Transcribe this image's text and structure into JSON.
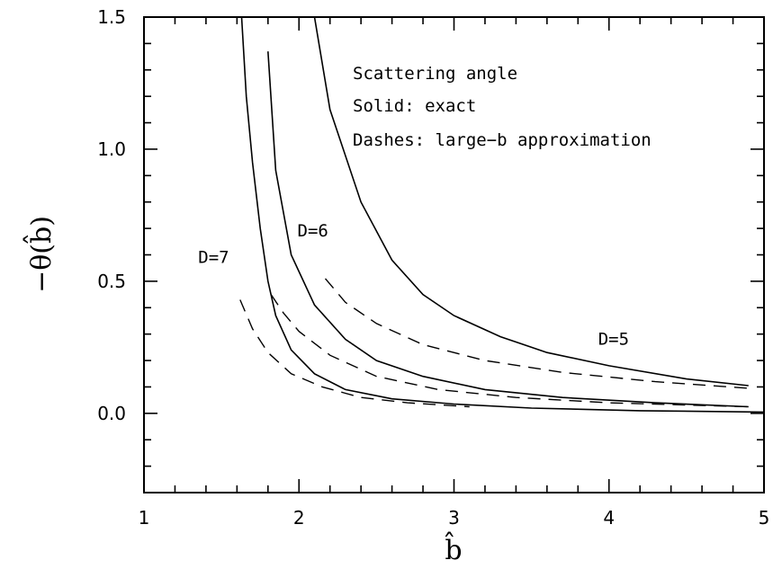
{
  "chart_data": {
    "type": "line",
    "xlabel": "b̂",
    "ylabel": "−θ(b̂)",
    "xlim": [
      1,
      5
    ],
    "ylim": [
      -0.3,
      1.5
    ],
    "x_ticks": [
      1,
      2,
      3,
      4,
      5
    ],
    "x_tick_labels": [
      "1",
      "2",
      "3",
      "4",
      "5"
    ],
    "y_ticks": [
      0.0,
      0.5,
      1.0,
      1.5
    ],
    "y_tick_labels": [
      "0.0",
      "0.5",
      "1.0",
      "1.5"
    ],
    "grid": false,
    "annotations": [
      "Scattering angle",
      "Solid: exact",
      "Dashes: large−b approximation"
    ],
    "series": [
      {
        "name": "D=5",
        "label": "D=5",
        "style": "solid",
        "x": [
          2.1,
          2.2,
          2.4,
          2.6,
          2.8,
          3.0,
          3.3,
          3.6,
          4.0,
          4.5,
          4.9
        ],
        "y": [
          1.5,
          1.15,
          0.8,
          0.58,
          0.45,
          0.37,
          0.29,
          0.23,
          0.18,
          0.13,
          0.105
        ]
      },
      {
        "name": "D=6",
        "label": "D=6",
        "style": "solid",
        "x": [
          1.8,
          1.85,
          1.95,
          2.1,
          2.3,
          2.5,
          2.8,
          3.2,
          3.7,
          4.3,
          4.9
        ],
        "y": [
          1.37,
          0.92,
          0.6,
          0.41,
          0.28,
          0.2,
          0.14,
          0.09,
          0.06,
          0.04,
          0.025
        ]
      },
      {
        "name": "D=7",
        "label": "D=7",
        "style": "solid",
        "x": [
          1.63,
          1.66,
          1.7,
          1.75,
          1.8,
          1.85,
          1.95,
          2.1,
          2.3,
          2.6,
          3.0,
          3.5,
          4.2,
          5.0
        ],
        "y": [
          1.5,
          1.2,
          0.95,
          0.7,
          0.5,
          0.37,
          0.24,
          0.15,
          0.09,
          0.055,
          0.035,
          0.02,
          0.01,
          0.005
        ]
      },
      {
        "name": "D=5 approx",
        "style": "dashed",
        "x": [
          2.17,
          2.3,
          2.5,
          2.8,
          3.2,
          3.7,
          4.3,
          4.9
        ],
        "y": [
          0.51,
          0.42,
          0.34,
          0.26,
          0.2,
          0.155,
          0.12,
          0.095
        ]
      },
      {
        "name": "D=6 approx",
        "style": "dashed",
        "x": [
          1.82,
          1.9,
          2.0,
          2.2,
          2.5,
          2.9,
          3.4,
          4.0,
          4.9
        ],
        "y": [
          0.45,
          0.38,
          0.31,
          0.22,
          0.14,
          0.09,
          0.06,
          0.04,
          0.025
        ]
      },
      {
        "name": "D=7 approx",
        "style": "dashed",
        "x": [
          1.62,
          1.7,
          1.8,
          1.95,
          2.15,
          2.4,
          2.7,
          3.1
        ],
        "y": [
          0.43,
          0.32,
          0.23,
          0.15,
          0.1,
          0.06,
          0.04,
          0.025
        ]
      }
    ],
    "series_labels": [
      {
        "text": "D=7",
        "x": 1.35,
        "y": 0.57
      },
      {
        "text": "D=6",
        "x": 1.99,
        "y": 0.67
      },
      {
        "text": "D=5",
        "x": 3.93,
        "y": 0.26
      }
    ]
  }
}
